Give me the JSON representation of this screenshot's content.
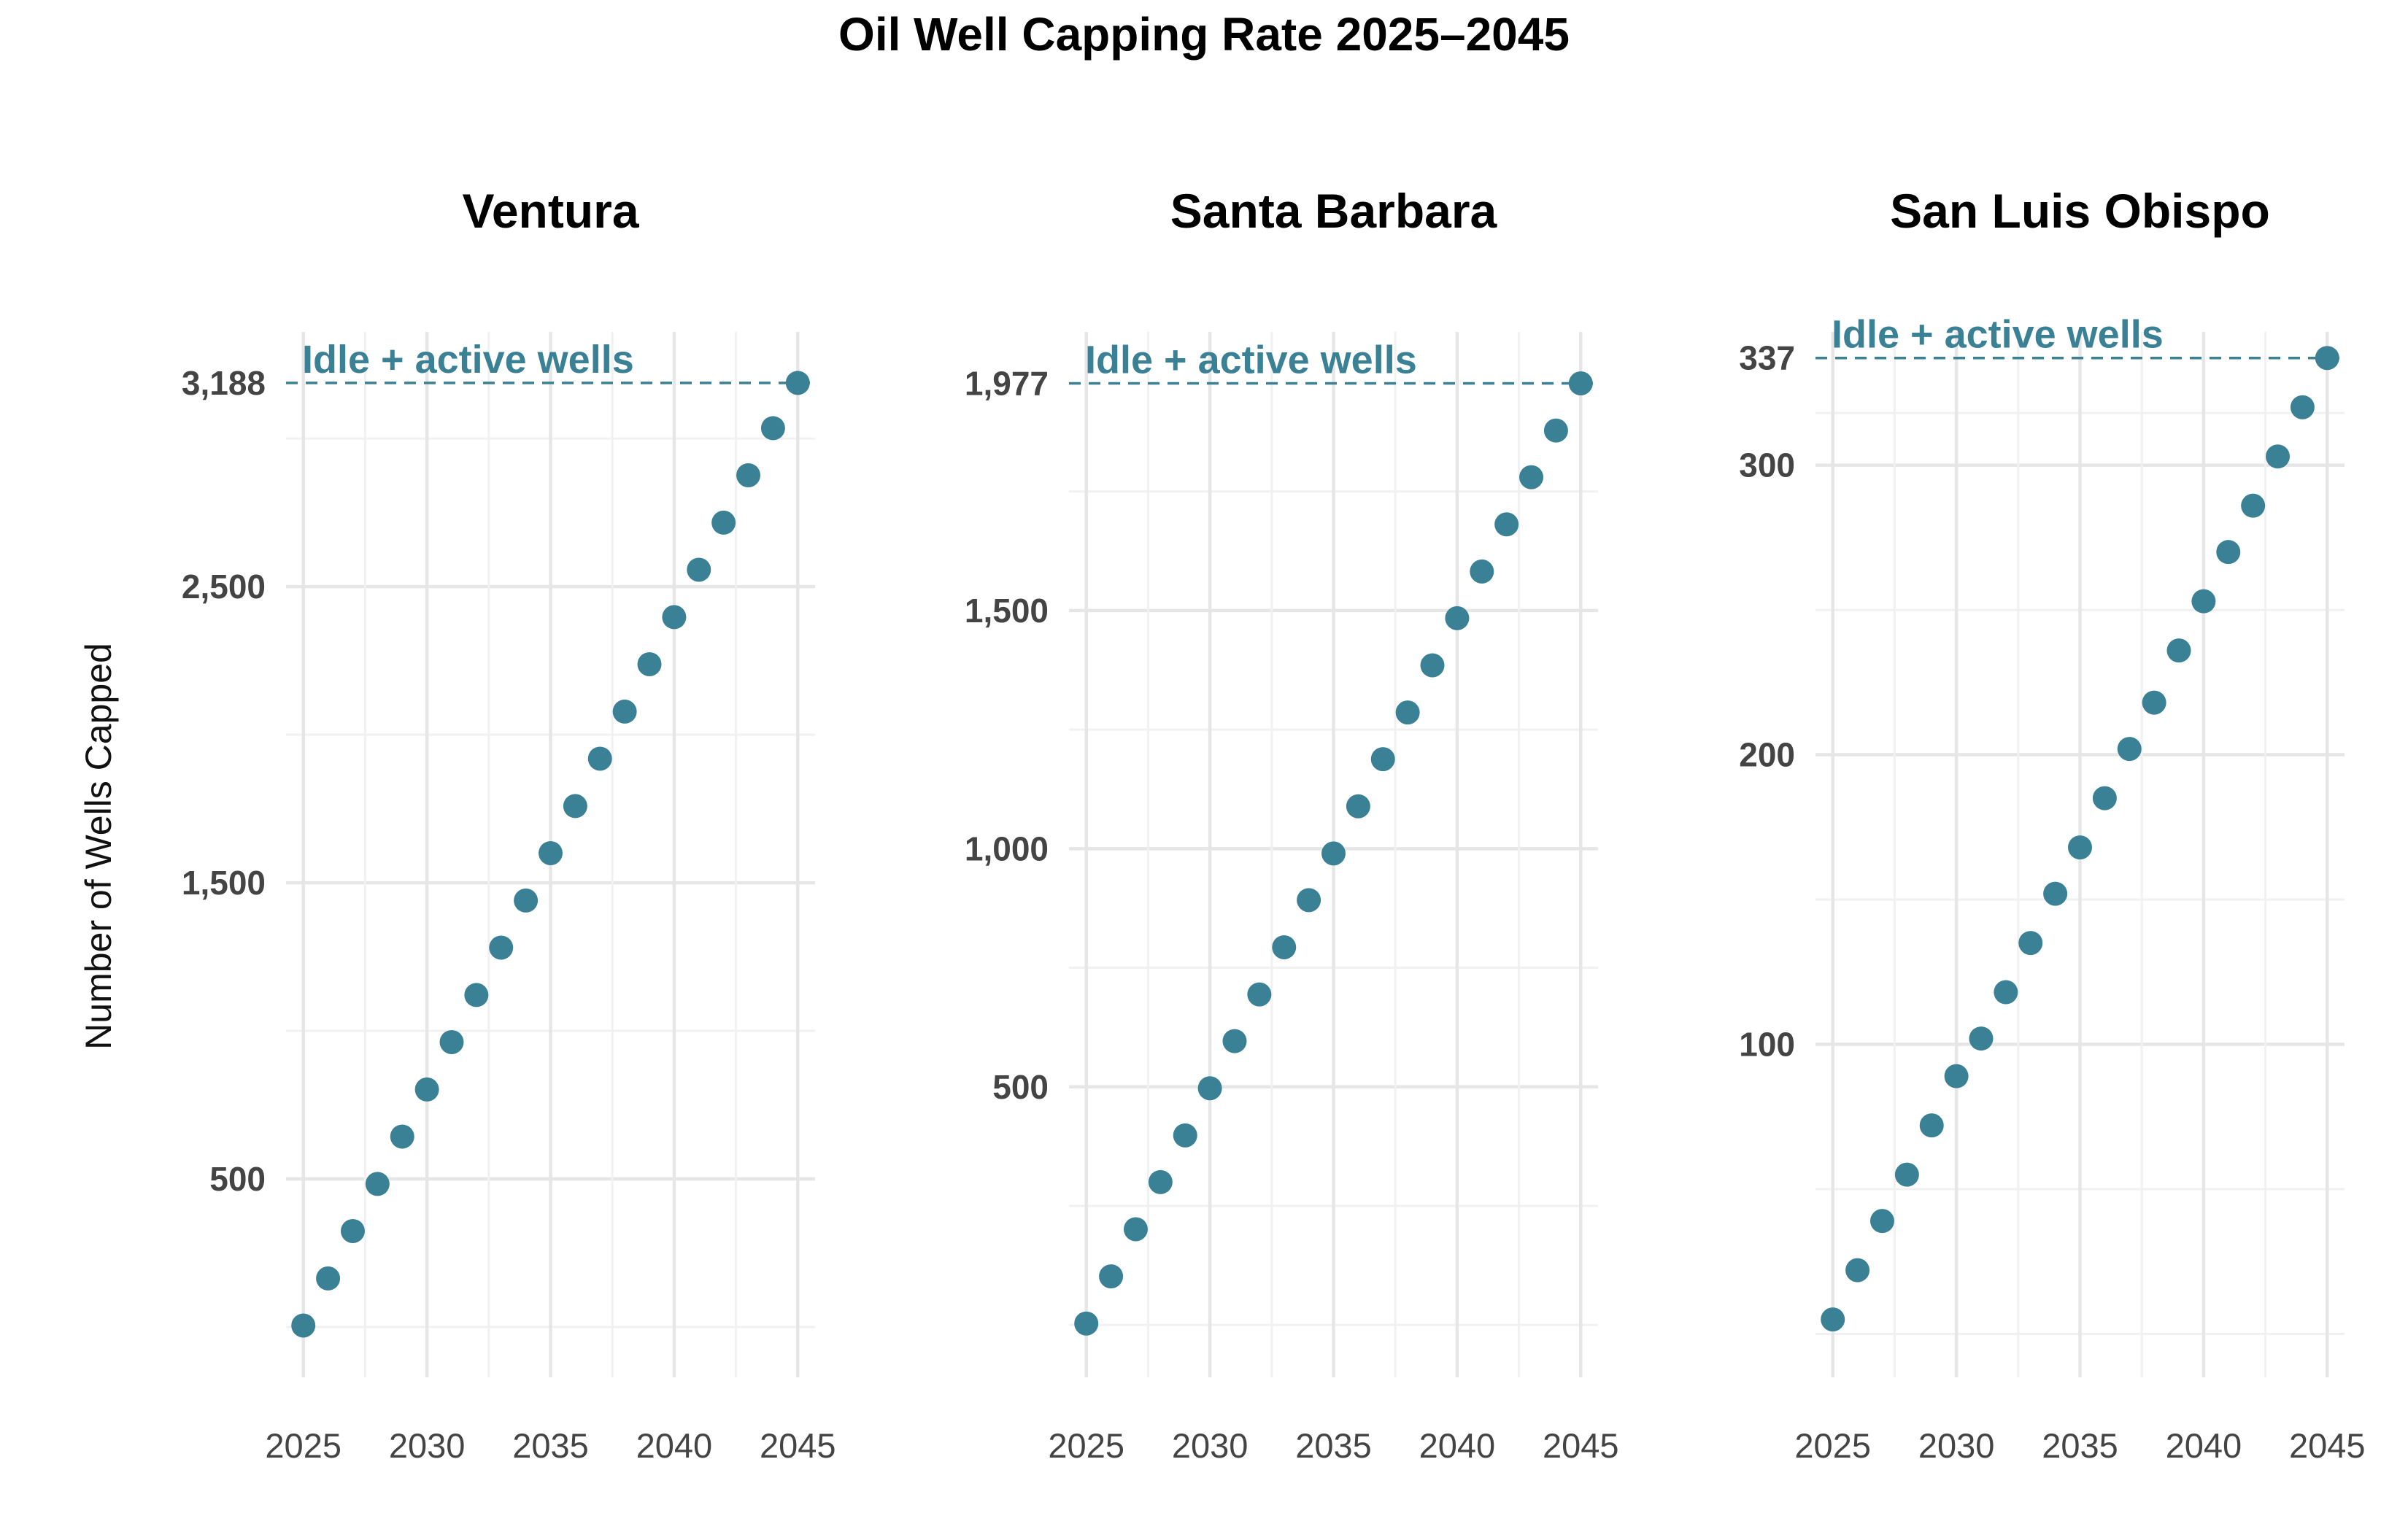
{
  "chart_data": {
    "type": "scatter",
    "title": "Oil Well Capping Rate 2025–2045",
    "ylabel": "Number of Wells Capped",
    "xlabel": "",
    "grid": true,
    "colors": {
      "points": "#3b8196",
      "reference_line": "#3b8196"
    },
    "panels": [
      {
        "name": "Ventura",
        "reference": {
          "label": "Idle + active wells",
          "value": 3188
        },
        "x": [
          2025,
          2026,
          2027,
          2028,
          2029,
          2030,
          2031,
          2032,
          2033,
          2034,
          2035,
          2036,
          2037,
          2038,
          2039,
          2040,
          2041,
          2042,
          2043,
          2044,
          2045
        ],
        "values": [
          5,
          164,
          324,
          483,
          643,
          802,
          962,
          1121,
          1281,
          1440,
          1600,
          1759,
          1919,
          2078,
          2238,
          2397,
          2557,
          2716,
          2876,
          3035,
          3188
        ],
        "xlim": [
          2024.3,
          2045.7
        ],
        "ylim": [
          -170,
          3360
        ],
        "x_ticks": [
          2025,
          2030,
          2035,
          2040,
          2045
        ],
        "x_tick_labels": [
          "2025",
          "2030",
          "2035",
          "2040",
          "2045"
        ],
        "y_ticks": [
          500,
          1500,
          2500,
          3188
        ],
        "y_tick_labels": [
          "500",
          "1,500",
          "2,500",
          "3,188"
        ],
        "y_major_grid": [
          500,
          1500,
          2500
        ],
        "y_minor_grid": [
          0,
          1000,
          2000,
          3000
        ]
      },
      {
        "name": "Santa Barbara",
        "reference": {
          "label": "Idle + active wells",
          "value": 1977
        },
        "x": [
          2025,
          2026,
          2027,
          2028,
          2029,
          2030,
          2031,
          2032,
          2033,
          2034,
          2035,
          2036,
          2037,
          2038,
          2039,
          2040,
          2041,
          2042,
          2043,
          2044,
          2045
        ],
        "values": [
          3,
          102,
          201,
          300,
          398,
          497,
          596,
          694,
          793,
          892,
          990,
          1089,
          1188,
          1286,
          1385,
          1484,
          1582,
          1681,
          1780,
          1878,
          1977
        ],
        "xlim": [
          2024.3,
          2045.7
        ],
        "ylim": [
          -110,
          2085
        ],
        "x_ticks": [
          2025,
          2030,
          2035,
          2040,
          2045
        ],
        "x_tick_labels": [
          "2025",
          "2030",
          "2035",
          "2040",
          "2045"
        ],
        "y_ticks": [
          500,
          1000,
          1500,
          1977
        ],
        "y_tick_labels": [
          "500",
          "1,000",
          "1,500",
          "1,977"
        ],
        "y_major_grid": [
          500,
          1000,
          1500
        ],
        "y_minor_grid": [
          0,
          250,
          750,
          1250,
          1750
        ]
      },
      {
        "name": "San Luis Obispo",
        "reference": {
          "label": "Idle + active wells",
          "value": 337
        },
        "x": [
          2025,
          2026,
          2027,
          2028,
          2029,
          2030,
          2031,
          2032,
          2033,
          2034,
          2035,
          2036,
          2037,
          2038,
          2039,
          2040,
          2041,
          2042,
          2043,
          2044,
          2045
        ],
        "values": [
          5,
          22,
          39,
          55,
          72,
          89,
          102,
          118,
          135,
          152,
          168,
          185,
          202,
          218,
          236,
          253,
          270,
          286,
          303,
          320,
          337
        ],
        "xlim": [
          2024.3,
          2045.7
        ],
        "ylim": [
          -15,
          346
        ],
        "x_ticks": [
          2025,
          2030,
          2035,
          2040,
          2045
        ],
        "x_tick_labels": [
          "2025",
          "2030",
          "2035",
          "2040",
          "2045"
        ],
        "y_ticks": [
          100,
          200,
          300,
          337
        ],
        "y_tick_labels": [
          "100",
          "200",
          "300",
          "337"
        ],
        "y_major_grid": [
          100,
          200,
          300
        ],
        "y_minor_grid": [
          0,
          50,
          150,
          250,
          318
        ]
      }
    ]
  }
}
